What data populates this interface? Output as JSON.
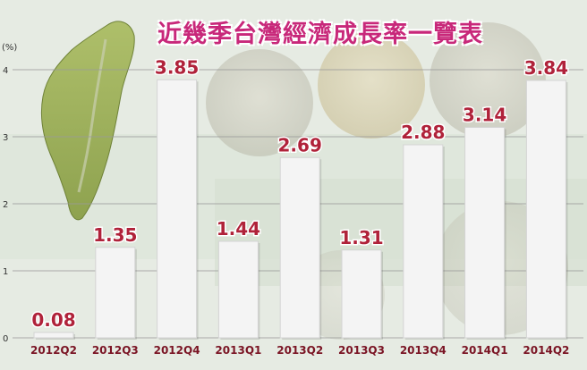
{
  "chart_data": {
    "type": "bar",
    "title": "近幾季台灣經濟成長率一覽表",
    "unit": "(%)",
    "categories": [
      "2012Q2",
      "2012Q3",
      "2012Q4",
      "2013Q1",
      "2013Q2",
      "2013Q3",
      "2013Q4",
      "2014Q1",
      "2014Q2"
    ],
    "values": [
      0.08,
      1.35,
      3.85,
      1.44,
      2.69,
      1.31,
      2.88,
      3.14,
      3.84
    ],
    "value_labels": [
      "0.08",
      "1.35",
      "3.85",
      "1.44",
      "2.69",
      "1.31",
      "2.88",
      "3.14",
      "3.84"
    ],
    "y_ticks": [
      "0",
      "1",
      "2",
      "3",
      "4"
    ],
    "ylim": [
      0,
      4
    ],
    "grid": true,
    "colors": {
      "title": "#c8287a",
      "value_label": "#b0223a",
      "bar": "#f4f4f4",
      "grid": "#9a9a9a",
      "tick_label": "#333333",
      "category_label": "#7a1424"
    }
  }
}
